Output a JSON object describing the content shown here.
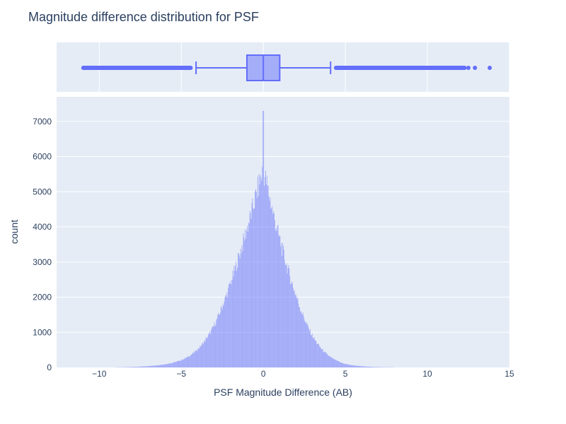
{
  "chart_data": {
    "title": "Magnitude difference distribution for PSF",
    "type": "histogram+box",
    "xlabel": "PSF Magnitude Difference (AB)",
    "ylabel": "count",
    "xlim": [
      -12.6,
      15.0
    ],
    "ylim": [
      0,
      7700
    ],
    "x_ticks": [
      {
        "value": -10,
        "label": "−10"
      },
      {
        "value": -5,
        "label": "−5"
      },
      {
        "value": 0,
        "label": "0"
      },
      {
        "value": 5,
        "label": "5"
      },
      {
        "value": 10,
        "label": "10"
      },
      {
        "value": 15,
        "label": "15"
      }
    ],
    "y_ticks": [
      {
        "value": 0,
        "label": "0"
      },
      {
        "value": 1000,
        "label": "1000"
      },
      {
        "value": 2000,
        "label": "2000"
      },
      {
        "value": 3000,
        "label": "3000"
      },
      {
        "value": 4000,
        "label": "4000"
      },
      {
        "value": 5000,
        "label": "5000"
      },
      {
        "value": 6000,
        "label": "6000"
      },
      {
        "value": 7000,
        "label": "7000"
      }
    ],
    "bin_width": 0.04,
    "peak": {
      "x": 0.0,
      "count": 7300
    },
    "histogram_profile": [
      {
        "x": -9.0,
        "count": 5
      },
      {
        "x": -8.0,
        "count": 15
      },
      {
        "x": -7.0,
        "count": 40
      },
      {
        "x": -6.0,
        "count": 90
      },
      {
        "x": -5.0,
        "count": 210
      },
      {
        "x": -4.5,
        "count": 330
      },
      {
        "x": -4.0,
        "count": 520
      },
      {
        "x": -3.5,
        "count": 800
      },
      {
        "x": -3.0,
        "count": 1200
      },
      {
        "x": -2.5,
        "count": 1750
      },
      {
        "x": -2.0,
        "count": 2400
      },
      {
        "x": -1.5,
        "count": 3150
      },
      {
        "x": -1.0,
        "count": 3950
      },
      {
        "x": -0.5,
        "count": 4800
      },
      {
        "x": -0.2,
        "count": 5350
      },
      {
        "x": 0.0,
        "count": 5600
      },
      {
        "x": 0.2,
        "count": 5250
      },
      {
        "x": 0.5,
        "count": 4600
      },
      {
        "x": 1.0,
        "count": 3650
      },
      {
        "x": 1.5,
        "count": 2800
      },
      {
        "x": 2.0,
        "count": 2050
      },
      {
        "x": 2.5,
        "count": 1400
      },
      {
        "x": 3.0,
        "count": 900
      },
      {
        "x": 3.5,
        "count": 560
      },
      {
        "x": 4.0,
        "count": 330
      },
      {
        "x": 4.5,
        "count": 190
      },
      {
        "x": 5.0,
        "count": 100
      },
      {
        "x": 6.0,
        "count": 35
      },
      {
        "x": 7.0,
        "count": 12
      },
      {
        "x": 8.0,
        "count": 4
      }
    ],
    "box": {
      "q1": -1.0,
      "median": 0.0,
      "q3": 1.0,
      "lower_fence": -4.1,
      "upper_fence": 4.1,
      "outlier_min": -11.1,
      "outlier_max": 13.8,
      "outliers_isolated": [
        12.5,
        12.9,
        13.8
      ]
    },
    "colors": {
      "bar": "#636efa",
      "plot_bg": "#e5ecf6",
      "grid": "#ffffff",
      "text": "#2a3f5f"
    }
  }
}
